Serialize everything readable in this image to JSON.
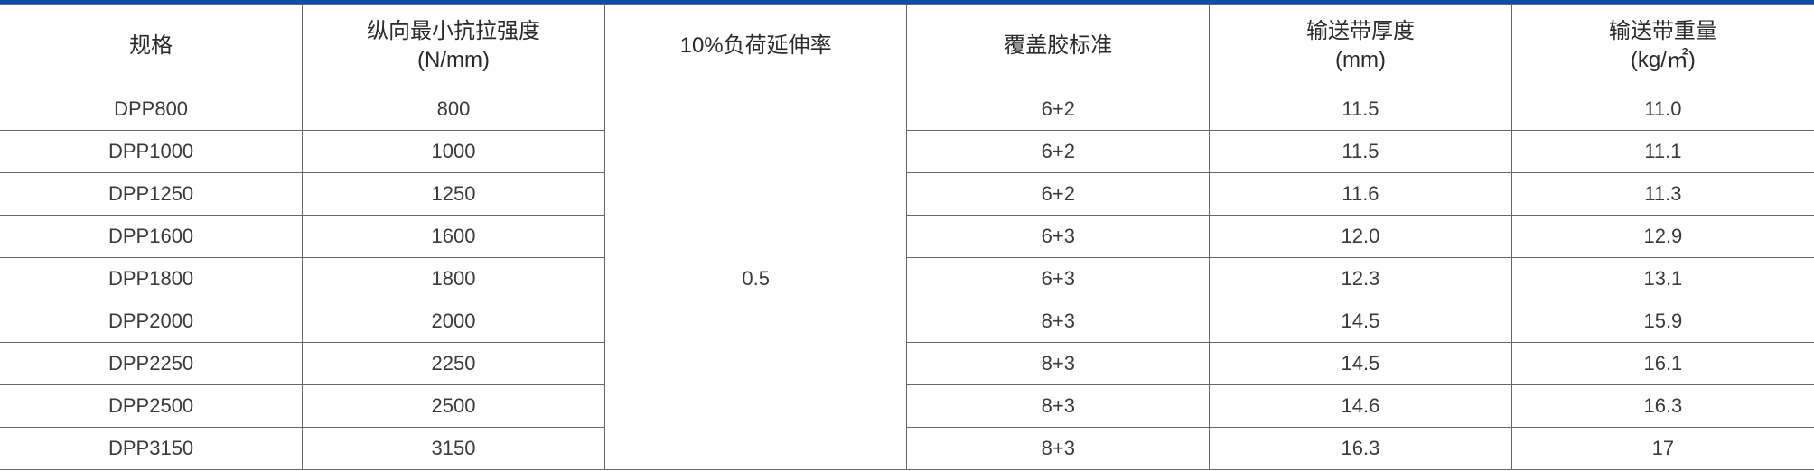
{
  "accent_color": "#0b4f9e",
  "table": {
    "headers": [
      {
        "line1": "规格",
        "line2": ""
      },
      {
        "line1": "纵向最小抗拉强度",
        "line2": "(N/mm)"
      },
      {
        "line1": "10%负荷延伸率",
        "line2": ""
      },
      {
        "line1": "覆盖胶标准",
        "line2": ""
      },
      {
        "line1": "输送带厚度",
        "line2": "(mm)"
      },
      {
        "line1": "输送带重量",
        "line2": "(kg/㎡)"
      }
    ],
    "elongation_merged": "0.5",
    "rows": [
      [
        "DPP800",
        "800",
        "6+2",
        "11.5",
        "11.0"
      ],
      [
        "DPP1000",
        "1000",
        "6+2",
        "11.5",
        "11.1"
      ],
      [
        "DPP1250",
        "1250",
        "6+2",
        "11.6",
        "11.3"
      ],
      [
        "DPP1600",
        "1600",
        "6+3",
        "12.0",
        "12.9"
      ],
      [
        "DPP1800",
        "1800",
        "6+3",
        "12.3",
        "13.1"
      ],
      [
        "DPP2000",
        "2000",
        "8+3",
        "14.5",
        "15.9"
      ],
      [
        "DPP2250",
        "2250",
        "8+3",
        "14.5",
        "16.1"
      ],
      [
        "DPP2500",
        "2500",
        "8+3",
        "14.6",
        "16.3"
      ],
      [
        "DPP3150",
        "3150",
        "8+3",
        "16.3",
        "17"
      ]
    ]
  }
}
